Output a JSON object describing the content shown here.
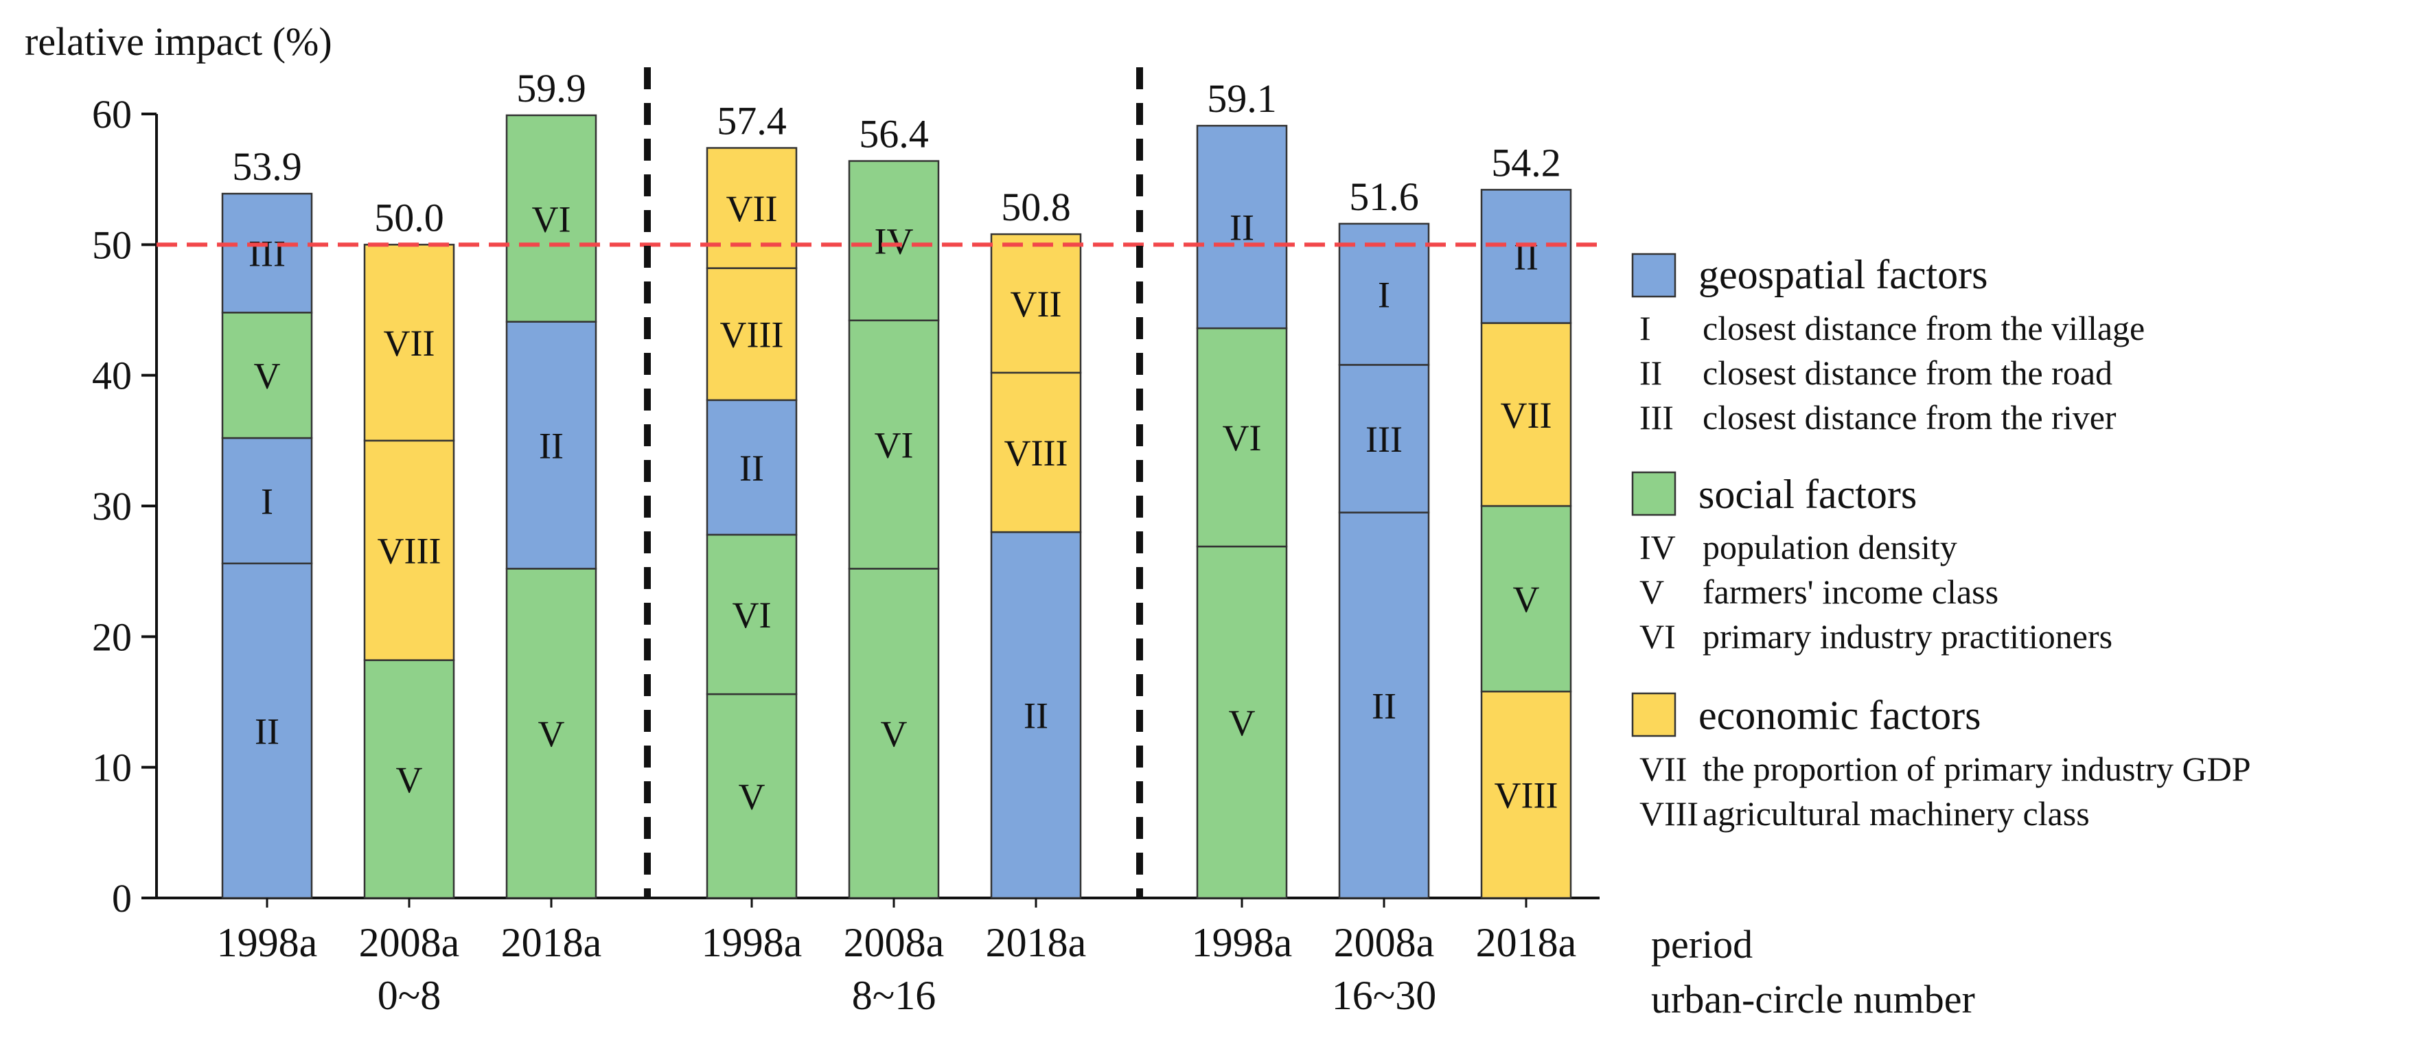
{
  "chart_data": {
    "type": "bar",
    "stacked": true,
    "ylabel": "relative impact (%)",
    "ylim": [
      0,
      60
    ],
    "yticks": [
      0,
      10,
      20,
      30,
      40,
      50,
      60
    ],
    "reference_line": 50,
    "x_axis_label_period": "period",
    "x_axis_label_group": "urban-circle number",
    "groups": [
      {
        "name": "0~8",
        "bars": [
          {
            "period": "1998a",
            "total": "53.9",
            "segments": [
              {
                "code": "II",
                "category": "geospatial",
                "value": 25.6
              },
              {
                "code": "I",
                "category": "geospatial",
                "value": 9.6
              },
              {
                "code": "V",
                "category": "social",
                "value": 9.6
              },
              {
                "code": "III",
                "category": "geospatial",
                "value": 9.1
              }
            ]
          },
          {
            "period": "2008a",
            "total": "50.0",
            "segments": [
              {
                "code": "V",
                "category": "social",
                "value": 18.2
              },
              {
                "code": "VIII",
                "category": "economic",
                "value": 16.8
              },
              {
                "code": "VII",
                "category": "economic",
                "value": 15.0
              }
            ]
          },
          {
            "period": "2018a",
            "total": "59.9",
            "segments": [
              {
                "code": "V",
                "category": "social",
                "value": 25.2
              },
              {
                "code": "II",
                "category": "geospatial",
                "value": 18.9
              },
              {
                "code": "VI",
                "category": "social",
                "value": 15.8
              }
            ]
          }
        ]
      },
      {
        "name": "8~16",
        "bars": [
          {
            "period": "1998a",
            "total": "57.4",
            "segments": [
              {
                "code": "V",
                "category": "social",
                "value": 15.6
              },
              {
                "code": "VI",
                "category": "social",
                "value": 12.2
              },
              {
                "code": "II",
                "category": "geospatial",
                "value": 10.3
              },
              {
                "code": "VIII",
                "category": "economic",
                "value": 10.1
              },
              {
                "code": "VII",
                "category": "economic",
                "value": 9.2
              }
            ]
          },
          {
            "period": "2008a",
            "total": "56.4",
            "segments": [
              {
                "code": "V",
                "category": "social",
                "value": 25.2
              },
              {
                "code": "VI",
                "category": "social",
                "value": 19.0
              },
              {
                "code": "IV",
                "category": "social",
                "value": 12.2
              }
            ]
          },
          {
            "period": "2018a",
            "total": "50.8",
            "segments": [
              {
                "code": "II",
                "category": "geospatial",
                "value": 28.0
              },
              {
                "code": "VIII",
                "category": "economic",
                "value": 12.2
              },
              {
                "code": "VII",
                "category": "economic",
                "value": 10.6
              }
            ]
          }
        ]
      },
      {
        "name": "16~30",
        "bars": [
          {
            "period": "1998a",
            "total": "59.1",
            "segments": [
              {
                "code": "V",
                "category": "social",
                "value": 26.9
              },
              {
                "code": "VI",
                "category": "social",
                "value": 16.7
              },
              {
                "code": "II",
                "category": "geospatial",
                "value": 15.5
              }
            ]
          },
          {
            "period": "2008a",
            "total": "51.6",
            "segments": [
              {
                "code": "II",
                "category": "geospatial",
                "value": 29.5
              },
              {
                "code": "III",
                "category": "geospatial",
                "value": 11.3
              },
              {
                "code": "I",
                "category": "geospatial",
                "value": 10.8
              }
            ]
          },
          {
            "period": "2018a",
            "total": "54.2",
            "segments": [
              {
                "code": "VIII",
                "category": "economic",
                "value": 15.8
              },
              {
                "code": "V",
                "category": "social",
                "value": 14.2
              },
              {
                "code": "VII",
                "category": "economic",
                "value": 14.0
              },
              {
                "code": "II",
                "category": "geospatial",
                "value": 10.2
              }
            ]
          }
        ]
      }
    ],
    "legend": [
      {
        "category": "geospatial",
        "title": "geospatial factors",
        "color": "#7fa6dc",
        "items": [
          {
            "code": "I",
            "text": "closest distance from the village"
          },
          {
            "code": "II",
            "text": "closest distance from the road"
          },
          {
            "code": "III",
            "text": "closest distance from the river"
          }
        ]
      },
      {
        "category": "social",
        "title": "social factors",
        "color": "#8fd18a",
        "items": [
          {
            "code": "IV",
            "text": "population density"
          },
          {
            "code": "V",
            "text": "farmers' income class"
          },
          {
            "code": "VI",
            "text": "primary industry practitioners"
          }
        ]
      },
      {
        "category": "economic",
        "title": "economic factors",
        "color": "#fcd75a",
        "items": [
          {
            "code": "VII",
            "text": "the proportion of primary industry GDP"
          },
          {
            "code": "VIII",
            "text": "agricultural machinery class"
          }
        ]
      }
    ],
    "colors": {
      "geospatial": "#7fa6dc",
      "social": "#8fd18a",
      "economic": "#fcd75a",
      "reference_line": "#f2474a"
    }
  }
}
